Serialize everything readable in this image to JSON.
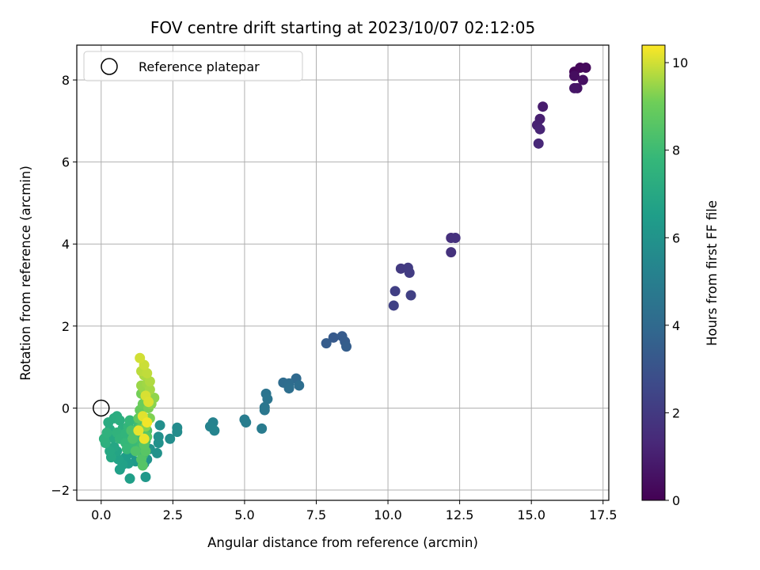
{
  "chart_data": {
    "type": "scatter",
    "title": "FOV centre drift starting at 2023/10/07 02:12:05",
    "xlabel": "Angular distance from reference (arcmin)",
    "ylabel": "Rotation from reference (arcmin)",
    "xlim": [
      -0.85,
      17.7
    ],
    "ylim": [
      -2.25,
      8.85
    ],
    "xticks": [
      0.0,
      2.5,
      5.0,
      7.5,
      10.0,
      12.5,
      15.0,
      17.5
    ],
    "xtick_labels": [
      "0.0",
      "2.5",
      "5.0",
      "7.5",
      "10.0",
      "12.5",
      "15.0",
      "17.5"
    ],
    "yticks": [
      -2,
      0,
      2,
      4,
      6,
      8
    ],
    "ytick_labels": [
      "−2",
      "0",
      "2",
      "4",
      "6",
      "8"
    ],
    "grid": true,
    "legend": {
      "placement": "top-left",
      "label": "Reference platepar"
    },
    "reference_point": {
      "x": 0.0,
      "y": 0.0
    },
    "colorbar": {
      "label": "Hours from first FF file",
      "colormap": "viridis",
      "range": [
        0,
        10.4
      ],
      "ticks": [
        0,
        2,
        4,
        6,
        8,
        10
      ],
      "tick_labels": [
        "0",
        "2",
        "4",
        "6",
        "8",
        "10"
      ]
    },
    "points": [
      {
        "x": 16.5,
        "y": 8.2,
        "h": 0.1
      },
      {
        "x": 16.7,
        "y": 8.3,
        "h": 0.2
      },
      {
        "x": 16.9,
        "y": 8.3,
        "h": 0.3
      },
      {
        "x": 16.5,
        "y": 8.1,
        "h": 0.4
      },
      {
        "x": 16.8,
        "y": 8.0,
        "h": 0.5
      },
      {
        "x": 16.6,
        "y": 7.8,
        "h": 0.6
      },
      {
        "x": 16.5,
        "y": 7.8,
        "h": 0.7
      },
      {
        "x": 15.4,
        "y": 7.35,
        "h": 0.9
      },
      {
        "x": 15.3,
        "y": 7.05,
        "h": 1.0
      },
      {
        "x": 15.2,
        "y": 6.9,
        "h": 1.1
      },
      {
        "x": 15.3,
        "y": 6.8,
        "h": 1.2
      },
      {
        "x": 15.25,
        "y": 6.45,
        "h": 1.3
      },
      {
        "x": 12.2,
        "y": 4.15,
        "h": 1.6
      },
      {
        "x": 12.35,
        "y": 4.15,
        "h": 1.65
      },
      {
        "x": 12.2,
        "y": 3.8,
        "h": 1.7
      },
      {
        "x": 10.45,
        "y": 3.4,
        "h": 2.0
      },
      {
        "x": 10.7,
        "y": 3.42,
        "h": 2.05
      },
      {
        "x": 10.75,
        "y": 3.3,
        "h": 2.1
      },
      {
        "x": 10.25,
        "y": 2.85,
        "h": 2.2
      },
      {
        "x": 10.8,
        "y": 2.75,
        "h": 2.25
      },
      {
        "x": 10.2,
        "y": 2.5,
        "h": 2.3
      },
      {
        "x": 8.1,
        "y": 1.72,
        "h": 3.3
      },
      {
        "x": 8.4,
        "y": 1.75,
        "h": 3.35
      },
      {
        "x": 8.5,
        "y": 1.62,
        "h": 3.4
      },
      {
        "x": 7.85,
        "y": 1.58,
        "h": 3.45
      },
      {
        "x": 8.55,
        "y": 1.5,
        "h": 3.5
      },
      {
        "x": 6.8,
        "y": 0.72,
        "h": 4.0
      },
      {
        "x": 6.35,
        "y": 0.62,
        "h": 4.1
      },
      {
        "x": 6.55,
        "y": 0.6,
        "h": 4.15
      },
      {
        "x": 6.9,
        "y": 0.55,
        "h": 4.2
      },
      {
        "x": 6.55,
        "y": 0.48,
        "h": 4.25
      },
      {
        "x": 5.75,
        "y": 0.35,
        "h": 4.5
      },
      {
        "x": 5.8,
        "y": 0.22,
        "h": 4.55
      },
      {
        "x": 5.7,
        "y": 0.02,
        "h": 4.6
      },
      {
        "x": 5.7,
        "y": -0.05,
        "h": 4.65
      },
      {
        "x": 5.0,
        "y": -0.28,
        "h": 4.9
      },
      {
        "x": 5.05,
        "y": -0.35,
        "h": 4.95
      },
      {
        "x": 5.6,
        "y": -0.5,
        "h": 4.85
      },
      {
        "x": 3.9,
        "y": -0.35,
        "h": 5.2
      },
      {
        "x": 3.8,
        "y": -0.45,
        "h": 5.25
      },
      {
        "x": 3.95,
        "y": -0.55,
        "h": 5.3
      },
      {
        "x": 2.65,
        "y": -0.48,
        "h": 5.6
      },
      {
        "x": 2.65,
        "y": -0.58,
        "h": 5.65
      },
      {
        "x": 2.4,
        "y": -0.75,
        "h": 5.7
      },
      {
        "x": 2.05,
        "y": -0.42,
        "h": 5.8
      },
      {
        "x": 2.0,
        "y": -0.7,
        "h": 5.85
      },
      {
        "x": 2.0,
        "y": -0.85,
        "h": 5.9
      },
      {
        "x": 1.95,
        "y": -1.1,
        "h": 5.95
      },
      {
        "x": 1.7,
        "y": -1.0,
        "h": 6.0
      },
      {
        "x": 1.6,
        "y": -1.25,
        "h": 6.05
      },
      {
        "x": 1.5,
        "y": -1.35,
        "h": 6.1
      },
      {
        "x": 1.55,
        "y": -1.68,
        "h": 6.2
      },
      {
        "x": 1.2,
        "y": -1.3,
        "h": 6.25
      },
      {
        "x": 1.05,
        "y": -1.1,
        "h": 6.3
      },
      {
        "x": 1.1,
        "y": -0.9,
        "h": 6.35
      },
      {
        "x": 0.95,
        "y": -1.35,
        "h": 6.4
      },
      {
        "x": 0.85,
        "y": -1.2,
        "h": 6.45
      },
      {
        "x": 1.0,
        "y": -1.72,
        "h": 6.55
      },
      {
        "x": 0.65,
        "y": -1.5,
        "h": 6.6
      },
      {
        "x": 0.75,
        "y": -1.38,
        "h": 6.65
      },
      {
        "x": 0.6,
        "y": -1.25,
        "h": 6.7
      },
      {
        "x": 0.55,
        "y": -1.05,
        "h": 6.8
      },
      {
        "x": 0.45,
        "y": -0.95,
        "h": 6.9
      },
      {
        "x": 0.35,
        "y": -1.2,
        "h": 6.95
      },
      {
        "x": 0.3,
        "y": -1.05,
        "h": 7.0
      },
      {
        "x": 0.4,
        "y": -0.72,
        "h": 7.05
      },
      {
        "x": 0.3,
        "y": -0.52,
        "h": 7.1
      },
      {
        "x": 0.25,
        "y": -0.35,
        "h": 7.15
      },
      {
        "x": 0.45,
        "y": -0.25,
        "h": 7.2
      },
      {
        "x": 0.55,
        "y": -0.2,
        "h": 7.25
      },
      {
        "x": 0.65,
        "y": -0.3,
        "h": 7.3
      },
      {
        "x": 0.75,
        "y": -0.5,
        "h": 7.35
      },
      {
        "x": 0.15,
        "y": -0.85,
        "h": 7.4
      },
      {
        "x": 0.1,
        "y": -0.75,
        "h": 7.45
      },
      {
        "x": 0.2,
        "y": -0.6,
        "h": 7.5
      },
      {
        "x": 0.55,
        "y": -0.6,
        "h": 7.55
      },
      {
        "x": 0.65,
        "y": -0.75,
        "h": 7.6
      },
      {
        "x": 0.85,
        "y": -0.62,
        "h": 7.65
      },
      {
        "x": 0.95,
        "y": -0.45,
        "h": 7.7
      },
      {
        "x": 1.0,
        "y": -0.3,
        "h": 7.75
      },
      {
        "x": 0.85,
        "y": -0.85,
        "h": 7.8
      },
      {
        "x": 0.9,
        "y": -1.0,
        "h": 7.85
      },
      {
        "x": 1.15,
        "y": -0.85,
        "h": 7.9
      },
      {
        "x": 1.25,
        "y": -0.6,
        "h": 7.95
      },
      {
        "x": 1.3,
        "y": -0.4,
        "h": 8.0
      },
      {
        "x": 1.35,
        "y": -0.75,
        "h": 8.05
      },
      {
        "x": 1.4,
        "y": -0.95,
        "h": 8.1
      },
      {
        "x": 1.45,
        "y": -1.15,
        "h": 8.15
      },
      {
        "x": 1.55,
        "y": -0.8,
        "h": 8.2
      },
      {
        "x": 1.6,
        "y": -0.55,
        "h": 8.3
      },
      {
        "x": 1.05,
        "y": -0.55,
        "h": 8.35
      },
      {
        "x": 1.1,
        "y": -0.75,
        "h": 8.4
      },
      {
        "x": 1.2,
        "y": -1.05,
        "h": 8.45
      },
      {
        "x": 1.4,
        "y": -1.25,
        "h": 8.5
      },
      {
        "x": 1.45,
        "y": -1.4,
        "h": 8.55
      },
      {
        "x": 1.55,
        "y": -1.05,
        "h": 8.6
      },
      {
        "x": 1.5,
        "y": -0.9,
        "h": 8.65
      },
      {
        "x": 1.6,
        "y": -0.7,
        "h": 8.7
      },
      {
        "x": 1.35,
        "y": -0.5,
        "h": 8.75
      },
      {
        "x": 1.3,
        "y": -0.25,
        "h": 8.8
      },
      {
        "x": 1.35,
        "y": -0.05,
        "h": 8.9
      },
      {
        "x": 1.45,
        "y": 0.1,
        "h": 9.0
      },
      {
        "x": 1.55,
        "y": 0.25,
        "h": 9.1
      },
      {
        "x": 1.4,
        "y": 0.35,
        "h": 9.15
      },
      {
        "x": 1.65,
        "y": 0.0,
        "h": 9.2
      },
      {
        "x": 1.7,
        "y": -0.25,
        "h": 9.25
      },
      {
        "x": 1.55,
        "y": -0.45,
        "h": 9.3
      },
      {
        "x": 1.75,
        "y": 0.1,
        "h": 9.35
      },
      {
        "x": 1.85,
        "y": 0.25,
        "h": 9.4
      },
      {
        "x": 1.5,
        "y": 0.45,
        "h": 9.45
      },
      {
        "x": 1.4,
        "y": 0.55,
        "h": 9.5
      },
      {
        "x": 1.6,
        "y": 0.6,
        "h": 9.55
      },
      {
        "x": 1.7,
        "y": 0.45,
        "h": 9.6
      },
      {
        "x": 1.5,
        "y": 0.8,
        "h": 9.65
      },
      {
        "x": 1.7,
        "y": 0.65,
        "h": 9.7
      },
      {
        "x": 1.4,
        "y": 0.9,
        "h": 9.8
      },
      {
        "x": 1.6,
        "y": 0.85,
        "h": 9.85
      },
      {
        "x": 1.5,
        "y": 1.05,
        "h": 9.95
      },
      {
        "x": 1.35,
        "y": 1.22,
        "h": 10.0
      },
      {
        "x": 1.55,
        "y": 0.3,
        "h": 10.05
      },
      {
        "x": 1.65,
        "y": 0.15,
        "h": 10.1
      },
      {
        "x": 1.45,
        "y": -0.2,
        "h": 10.15
      },
      {
        "x": 1.3,
        "y": -0.55,
        "h": 10.2
      },
      {
        "x": 1.5,
        "y": -0.75,
        "h": 10.25
      },
      {
        "x": 1.6,
        "y": -0.35,
        "h": 10.3
      }
    ]
  }
}
